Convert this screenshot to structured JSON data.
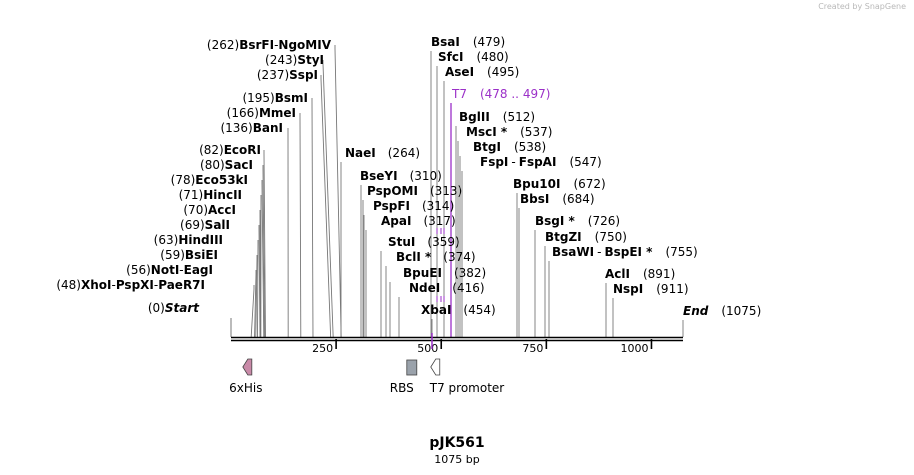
{
  "watermark": "Created by SnapGene",
  "plasmid": {
    "name": "pJK561",
    "length_label": "1075 bp",
    "length": 1075
  },
  "axis": {
    "ticks": [
      {
        "value": 250,
        "label": "250"
      },
      {
        "value": 500,
        "label": "500"
      },
      {
        "value": 750,
        "label": "750"
      },
      {
        "value": 1000,
        "label": "1000"
      }
    ]
  },
  "sites_left": [
    {
      "pos": 262,
      "pos_label": "(262)",
      "names": [
        "BsrFI",
        "NgoMIV"
      ]
    },
    {
      "pos": 243,
      "pos_label": "(243)",
      "names": [
        "StyI"
      ]
    },
    {
      "pos": 237,
      "pos_label": "(237)",
      "names": [
        "SspI"
      ]
    },
    {
      "pos": 195,
      "pos_label": "(195)",
      "names": [
        "BsmI"
      ]
    },
    {
      "pos": 166,
      "pos_label": "(166)",
      "names": [
        "MmeI"
      ]
    },
    {
      "pos": 136,
      "pos_label": "(136)",
      "names": [
        "BanI"
      ]
    },
    {
      "pos": 82,
      "pos_label": "(82)",
      "names": [
        "EcoRI"
      ]
    },
    {
      "pos": 80,
      "pos_label": "(80)",
      "names": [
        "SacI"
      ]
    },
    {
      "pos": 78,
      "pos_label": "(78)",
      "names": [
        "Eco53kI"
      ]
    },
    {
      "pos": 71,
      "pos_label": "(71)",
      "names": [
        "HincII"
      ]
    },
    {
      "pos": 70,
      "pos_label": "(70)",
      "names": [
        "AccI"
      ]
    },
    {
      "pos": 69,
      "pos_label": "(69)",
      "names": [
        "SalI"
      ]
    },
    {
      "pos": 63,
      "pos_label": "(63)",
      "names": [
        "HindIII"
      ]
    },
    {
      "pos": 59,
      "pos_label": "(59)",
      "names": [
        "BsiEI"
      ]
    },
    {
      "pos": 56,
      "pos_label": "(56)",
      "names": [
        "NotI",
        "EagI"
      ]
    },
    {
      "pos": 48,
      "pos_label": "(48)",
      "names": [
        "XhoI",
        "PspXI",
        "PaeR7I"
      ]
    },
    {
      "pos": 0,
      "pos_label": "(0)",
      "names": [
        "Start"
      ],
      "italic": true
    }
  ],
  "sites_mid": [
    {
      "pos": 264,
      "pos_label": "(264)",
      "names": [
        "NaeI"
      ],
      "side": "right"
    },
    {
      "pos": 310,
      "pos_label": "(310)",
      "names": [
        "BseYI"
      ],
      "side": "right"
    },
    {
      "pos": 313,
      "pos_label": "(313)",
      "names": [
        "PspOMI"
      ],
      "side": "right"
    },
    {
      "pos": 314,
      "pos_label": "(314)",
      "names": [
        "PspFI"
      ],
      "side": "right"
    },
    {
      "pos": 317,
      "pos_label": "(317)",
      "names": [
        "ApaI"
      ],
      "side": "right"
    },
    {
      "pos": 359,
      "pos_label": "(359)",
      "names": [
        "StuI"
      ],
      "side": "right"
    },
    {
      "pos": 374,
      "pos_label": "(374)",
      "names": [
        "BclI *"
      ],
      "side": "right"
    },
    {
      "pos": 382,
      "pos_label": "(382)",
      "names": [
        "BpuEI"
      ],
      "side": "right"
    },
    {
      "pos": 416,
      "pos_label": "(416)",
      "names": [
        "NdeI"
      ],
      "side": "right"
    },
    {
      "pos": 454,
      "pos_label": "(454)",
      "names": [
        "XbaI"
      ],
      "side": "right"
    }
  ],
  "sites_right": [
    {
      "pos": 479,
      "pos_label": "(479)",
      "names": [
        "BsaI"
      ]
    },
    {
      "pos": 480,
      "pos_label": "(480)",
      "names": [
        "SfcI"
      ]
    },
    {
      "pos": 495,
      "pos_label": "(495)",
      "names": [
        "AseI"
      ]
    },
    {
      "pos": 478,
      "pos_label": "(478 .. 497)",
      "names": [
        "T7"
      ],
      "feature": true
    },
    {
      "pos": 512,
      "pos_label": "(512)",
      "names": [
        "BglII"
      ]
    },
    {
      "pos": 537,
      "pos_label": "(537)",
      "names": [
        "MscI *"
      ]
    },
    {
      "pos": 538,
      "pos_label": "(538)",
      "names": [
        "BtgI"
      ]
    },
    {
      "pos": 547,
      "pos_label": "(547)",
      "names": [
        "FspI",
        "FspAI"
      ]
    },
    {
      "pos": 672,
      "pos_label": "(672)",
      "names": [
        "Bpu10I"
      ]
    },
    {
      "pos": 684,
      "pos_label": "(684)",
      "names": [
        "BbsI"
      ]
    },
    {
      "pos": 726,
      "pos_label": "(726)",
      "names": [
        "BsgI *"
      ]
    },
    {
      "pos": 750,
      "pos_label": "(750)",
      "names": [
        "BtgZI"
      ]
    },
    {
      "pos": 755,
      "pos_label": "(755)",
      "names": [
        "BsaWI",
        "BspEI *"
      ]
    },
    {
      "pos": 891,
      "pos_label": "(891)",
      "names": [
        "AclI"
      ]
    },
    {
      "pos": 911,
      "pos_label": "(911)",
      "names": [
        "NspI"
      ]
    },
    {
      "pos": 1075,
      "pos_label": "(1075)",
      "names": [
        "End"
      ],
      "italic": true
    }
  ],
  "features": [
    {
      "name": "6xHis",
      "label": "6xHis",
      "pos": 40,
      "color": "#c98aa8",
      "shape": "arrow-left"
    },
    {
      "name": "RBS",
      "label": "RBS",
      "pos": 430,
      "color": "#9aa2ab",
      "shape": "box"
    },
    {
      "name": "T7 promoter",
      "label": "T7 promoter",
      "pos": 487,
      "color": "#ffffff",
      "shape": "arrow-left"
    }
  ],
  "colors": {
    "line": "#000000",
    "feature_t7": "#9b30c8",
    "site_line": "#7f7f7f"
  }
}
